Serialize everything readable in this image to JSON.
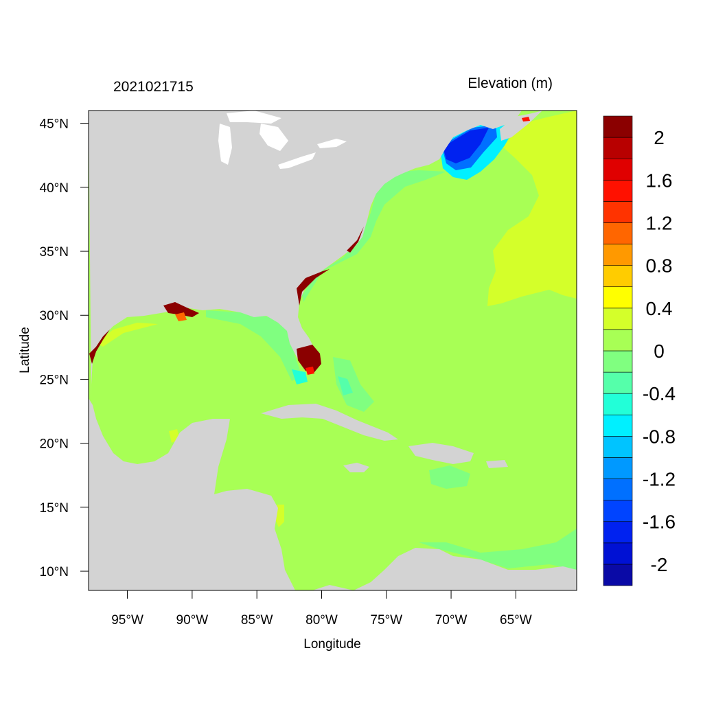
{
  "figure": {
    "left_title": "2021021715",
    "right_title": "Elevation (m)",
    "xlabel": "Longitude",
    "ylabel": "Latitude"
  },
  "chart_data": {
    "type": "heatmap",
    "title": "Elevation (m)",
    "timestamp": "2021021715",
    "xlabel": "Longitude",
    "ylabel": "Latitude",
    "xlim": [
      -98,
      -60.3
    ],
    "ylim": [
      8.5,
      46
    ],
    "x_ticks": [
      -95,
      -90,
      -85,
      -80,
      -75,
      -70,
      -65
    ],
    "x_tick_labels": [
      "95°W",
      "90°W",
      "85°W",
      "80°W",
      "75°W",
      "70°W",
      "65°W"
    ],
    "y_ticks": [
      10,
      15,
      20,
      25,
      30,
      35,
      40,
      45
    ],
    "y_tick_labels": [
      "10°N",
      "15°N",
      "20°N",
      "25°N",
      "30°N",
      "35°N",
      "40°N",
      "45°N"
    ],
    "colorbar": {
      "colors": [
        "#0a0aa6",
        "#0011d4",
        "#0022f0",
        "#0044ff",
        "#0070ff",
        "#0099ff",
        "#00c4ff",
        "#00f0ff",
        "#22ffd8",
        "#55ffaa",
        "#80ff80",
        "#a8ff55",
        "#d4ff2a",
        "#ffff00",
        "#ffcc00",
        "#ff9900",
        "#ff6600",
        "#ff3300",
        "#ff1100",
        "#e00000",
        "#b80000",
        "#8b0000"
      ],
      "tick_values": [
        -2,
        -1.6,
        -1.2,
        -0.8,
        -0.4,
        0,
        0.4,
        0.8,
        1.2,
        1.6,
        2
      ],
      "tick_labels": [
        "-2",
        "-1.6",
        "-1.2",
        "-0.8",
        "-0.4",
        "0",
        "0.4",
        "0.8",
        "1.2",
        "1.6",
        "2"
      ]
    },
    "colors": {
      "land": "#d3d3d3",
      "ocean_base": "#a8ff55",
      "positive_offshore": "#d4ff2a",
      "gulf_of_maine_low": "#0044ff",
      "florida_high": "#8b0000"
    }
  }
}
